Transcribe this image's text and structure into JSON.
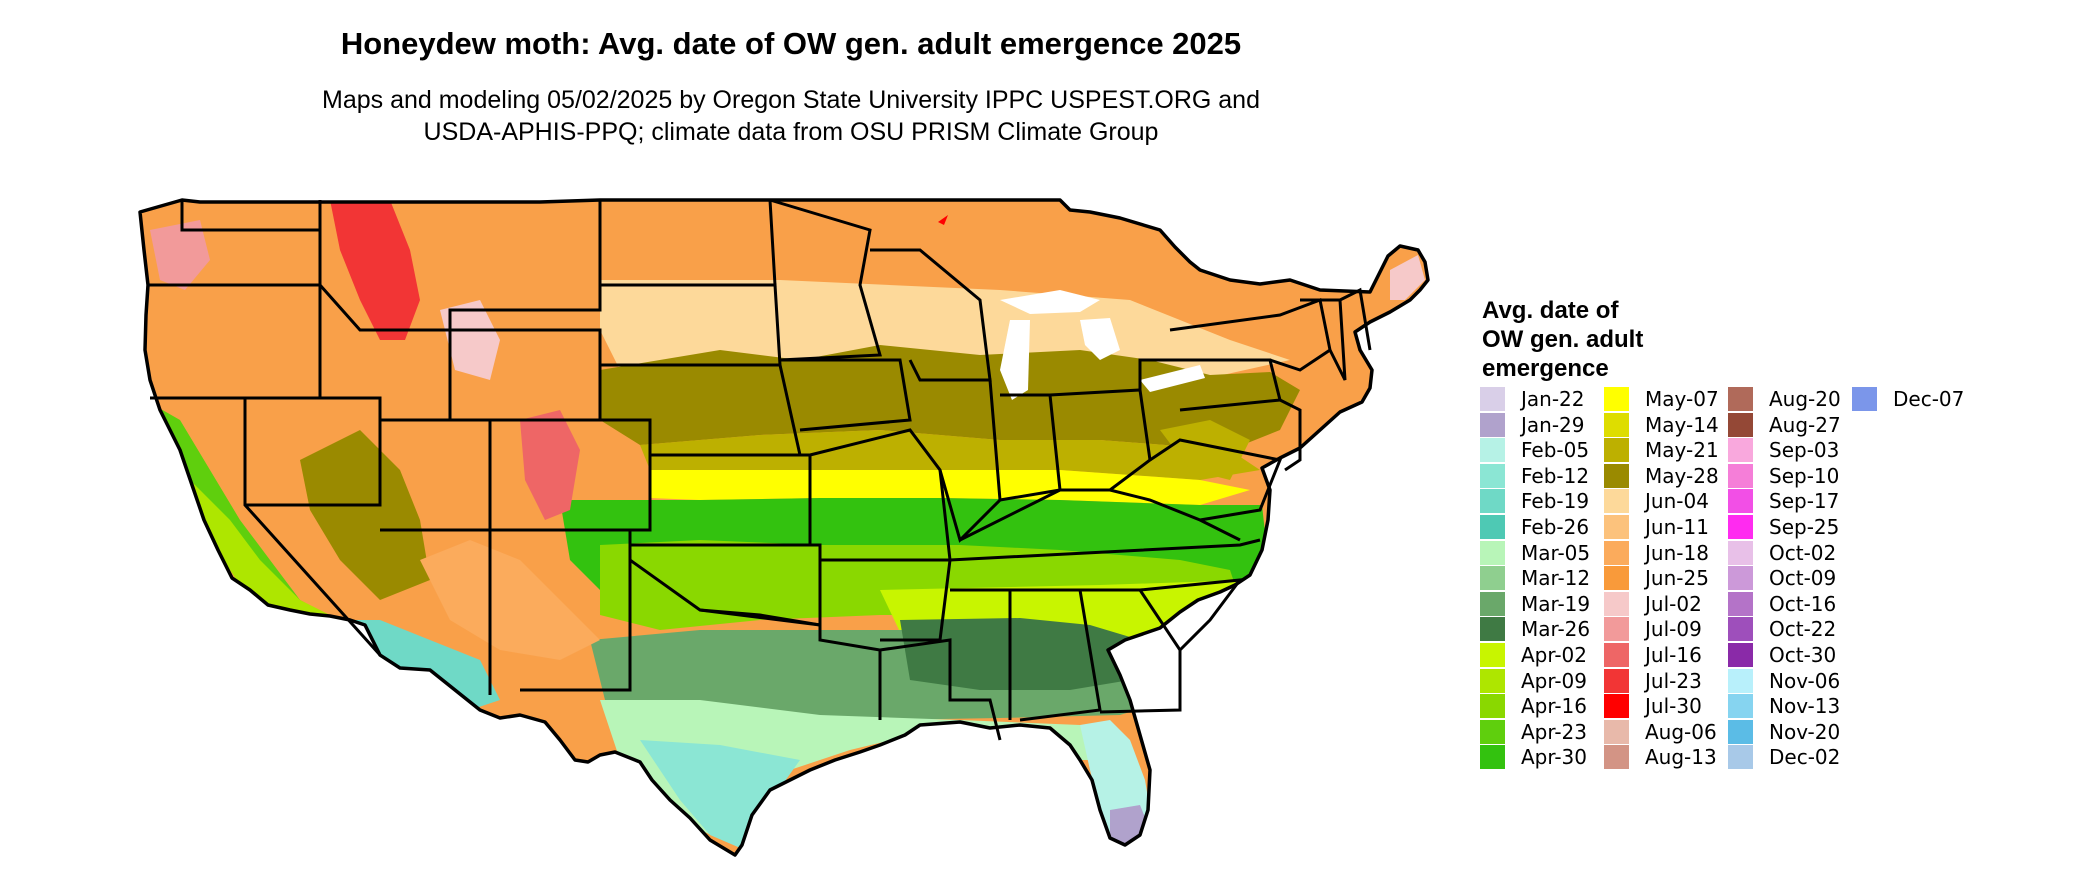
{
  "title": "Honeydew moth: Avg. date of OW gen. adult emergence 2025",
  "subtitle_line1": "Maps and modeling 05/02/2025 by Oregon State University IPPC USPEST.ORG and",
  "subtitle_line2": "USDA-APHIS-PPQ; climate data from OSU PRISM Climate Group",
  "legend": {
    "title_line1": "Avg. date of",
    "title_line2": "OW gen. adult",
    "title_line3": "emergence",
    "items": [
      {
        "label": "Jan-22",
        "color": "#d9cfe8"
      },
      {
        "label": "Jan-29",
        "color": "#b0a2cc"
      },
      {
        "label": "Feb-05",
        "color": "#b6f2e6"
      },
      {
        "label": "Feb-12",
        "color": "#8be6d4"
      },
      {
        "label": "Feb-19",
        "color": "#6fd9c6"
      },
      {
        "label": "Feb-26",
        "color": "#4ec9b4"
      },
      {
        "label": "Mar-05",
        "color": "#b8f5b8"
      },
      {
        "label": "Mar-12",
        "color": "#8fcf8f"
      },
      {
        "label": "Mar-19",
        "color": "#6aa86a"
      },
      {
        "label": "Mar-26",
        "color": "#3f7a44"
      },
      {
        "label": "Apr-02",
        "color": "#c8f500"
      },
      {
        "label": "Apr-09",
        "color": "#aee600"
      },
      {
        "label": "Apr-16",
        "color": "#8ad800"
      },
      {
        "label": "Apr-23",
        "color": "#5fcf0d"
      },
      {
        "label": "Apr-30",
        "color": "#33c20f"
      },
      {
        "label": "May-07",
        "color": "#ffff00"
      },
      {
        "label": "May-14",
        "color": "#dedd00"
      },
      {
        "label": "May-21",
        "color": "#bdb000"
      },
      {
        "label": "May-28",
        "color": "#9a8a00"
      },
      {
        "label": "Jun-04",
        "color": "#fdd99a"
      },
      {
        "label": "Jun-11",
        "color": "#fcc27c"
      },
      {
        "label": "Jun-18",
        "color": "#fbab5c"
      },
      {
        "label": "Jun-25",
        "color": "#f99a3a"
      },
      {
        "label": "Jul-02",
        "color": "#f6c9c9"
      },
      {
        "label": "Jul-09",
        "color": "#f29a9a"
      },
      {
        "label": "Jul-16",
        "color": "#ee6666"
      },
      {
        "label": "Jul-23",
        "color": "#f23535"
      },
      {
        "label": "Jul-30",
        "color": "#ff0000"
      },
      {
        "label": "Aug-06",
        "color": "#e8b9aa"
      },
      {
        "label": "Aug-13",
        "color": "#d39485"
      },
      {
        "label": "Aug-20",
        "color": "#b06a5a"
      },
      {
        "label": "Aug-27",
        "color": "#944836"
      },
      {
        "label": "Sep-03",
        "color": "#f9a8dd"
      },
      {
        "label": "Sep-10",
        "color": "#f57ed8"
      },
      {
        "label": "Sep-17",
        "color": "#f24fe6"
      },
      {
        "label": "Sep-25",
        "color": "#ff2bf0"
      },
      {
        "label": "Oct-02",
        "color": "#e8c0e8"
      },
      {
        "label": "Oct-09",
        "color": "#cc99d9"
      },
      {
        "label": "Oct-16",
        "color": "#b473c8"
      },
      {
        "label": "Oct-22",
        "color": "#9e4fbb"
      },
      {
        "label": "Oct-30",
        "color": "#8a2aa8"
      },
      {
        "label": "Nov-06",
        "color": "#b8f0fb"
      },
      {
        "label": "Nov-13",
        "color": "#86d4f0"
      },
      {
        "label": "Nov-20",
        "color": "#5bbce6"
      },
      {
        "label": "Dec-02",
        "color": "#a8c9e8"
      },
      {
        "label": "Dec-07",
        "color": "#7b96ea"
      }
    ]
  }
}
